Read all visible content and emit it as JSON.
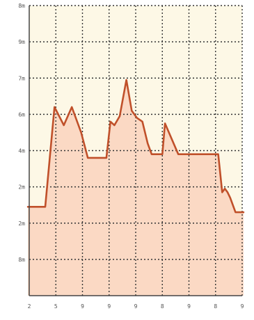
{
  "chart_data": {
    "type": "area",
    "title": "",
    "xlabel": "",
    "ylabel": "",
    "grid": true,
    "legend": "none",
    "xlim": [
      0,
      8
    ],
    "ylim": [
      0,
      8
    ],
    "x_ticks": [
      0,
      1,
      2,
      3,
      4,
      5,
      6,
      7,
      8
    ],
    "x_tick_labels": [
      "2",
      "5",
      "9",
      "9",
      "9",
      "8",
      "9",
      "8",
      "9"
    ],
    "y_ticks": [
      1,
      2,
      3,
      4,
      5,
      6,
      7,
      8
    ],
    "y_tick_labels": [
      "8m",
      "2m",
      "2m",
      "4m",
      "6m",
      "7m",
      "9m",
      "8m"
    ],
    "colors": {
      "line": "#c0502a",
      "fill": "#fbd9c4",
      "plot_background": "#fdf8e6",
      "grid": "#333333",
      "axis": "#444444"
    },
    "series": [
      {
        "x": [
          -0.05,
          0.6,
          0.95,
          1.3,
          1.6,
          1.95,
          2.2,
          2.9,
          3.05,
          3.2,
          3.4,
          3.65,
          3.85,
          4.05,
          4.25,
          4.45,
          4.6,
          4.85,
          5.0,
          5.1,
          5.6,
          5.75,
          5.95,
          6.05,
          7.1,
          7.25,
          7.35,
          7.45,
          7.55,
          7.75,
          8.05
        ],
        "y": [
          2.45,
          2.45,
          5.2,
          4.7,
          5.2,
          4.5,
          3.8,
          3.8,
          4.8,
          4.7,
          4.95,
          5.95,
          5.1,
          4.9,
          4.8,
          4.2,
          3.9,
          3.9,
          3.9,
          4.75,
          3.9,
          3.9,
          3.9,
          3.9,
          3.9,
          2.85,
          2.95,
          2.85,
          2.7,
          2.3,
          2.3
        ]
      }
    ]
  }
}
